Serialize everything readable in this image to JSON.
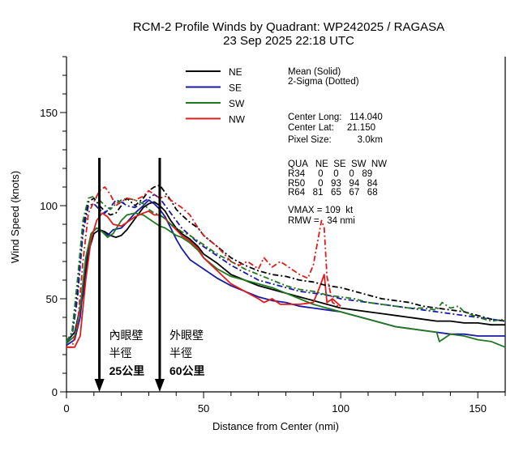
{
  "chart_data": {
    "type": "line",
    "title": "RCM-2 Profile Winds by Quadrant: WP242025 / RAGASA",
    "subtitle": "23 Sep 2025 22:18 UTC",
    "xlabel": "Distance from Center (nmi)",
    "ylabel": "Wind Speed (knots)",
    "xlim": [
      0,
      160
    ],
    "ylim": [
      0,
      180
    ],
    "x_ticks": [
      "0",
      "50",
      "100",
      "150"
    ],
    "y_ticks": [
      "0",
      "50",
      "100",
      "150"
    ],
    "grid": false,
    "legend": {
      "placement": "top-center",
      "entries": [
        {
          "name": "NE",
          "color": "#000000"
        },
        {
          "name": "SE",
          "color": "#1a1aa6"
        },
        {
          "name": "SW",
          "color": "#1f7a1f"
        },
        {
          "name": "NW",
          "color": "#e01b1b"
        }
      ]
    },
    "info": {
      "mean_label": "Mean (Solid)",
      "sigma_label": "2-Sigma (Dotted)",
      "center_long": "Center Long:   114.040",
      "center_lat": "Center Lat:     21.150",
      "pixel_size": "Pixel Size:          3.0km",
      "table_header": "QUA   NE  SE  SW  NW",
      "r34": "R34     0    0    0   89",
      "r50": "R50     0   93   94   84",
      "r64": "R64   81   65   67   68",
      "vmax": "VMAX = 109  kt",
      "rmw": "RMW =   34 nmi"
    },
    "annotations": [
      {
        "x": 12,
        "lines": [
          "內眼壁",
          "半徑",
          "25公里"
        ]
      },
      {
        "x": 34,
        "lines": [
          "外眼壁",
          "半徑",
          "60公里"
        ]
      }
    ],
    "series": [
      {
        "name": "NE",
        "color": "#000000",
        "style": "mean",
        "x": [
          0,
          3,
          6,
          8,
          10,
          12,
          14,
          16,
          18,
          20,
          22,
          25,
          28,
          30,
          32,
          34,
          36,
          38,
          40,
          42,
          45,
          48,
          50,
          55,
          60,
          65,
          70,
          75,
          80,
          85,
          90,
          95,
          100,
          105,
          110,
          115,
          120,
          125,
          130,
          135,
          140,
          145,
          150,
          155,
          160
        ],
        "y": [
          27,
          32,
          52,
          75,
          85,
          87,
          86,
          84,
          83,
          84,
          87,
          93,
          99,
          101,
          102,
          100,
          97,
          92,
          88,
          85,
          82,
          78,
          74,
          69,
          63,
          60,
          57,
          55,
          53,
          51,
          49,
          47,
          45,
          44,
          43,
          42,
          41,
          40,
          39,
          38,
          38,
          37,
          37,
          36,
          36
        ]
      },
      {
        "name": "SE",
        "color": "#1a1aa6",
        "style": "mean",
        "x": [
          0,
          3,
          5,
          7,
          9,
          11,
          13,
          15,
          17,
          20,
          22,
          25,
          28,
          30,
          32,
          34,
          36,
          38,
          40,
          42,
          45,
          48,
          50,
          55,
          60,
          65,
          70,
          75,
          80,
          85,
          90,
          95,
          100,
          105,
          110,
          115,
          120,
          125,
          130,
          135,
          140,
          145,
          150,
          155,
          160
        ],
        "y": [
          25,
          28,
          40,
          70,
          85,
          88,
          86,
          84,
          87,
          88,
          91,
          96,
          100,
          103,
          101,
          98,
          94,
          88,
          82,
          77,
          71,
          68,
          66,
          61,
          57,
          54,
          51,
          49,
          48,
          46,
          45,
          44,
          43,
          41,
          39,
          37,
          35,
          34,
          33,
          32,
          31,
          31,
          30,
          30,
          30
        ]
      },
      {
        "name": "SW",
        "color": "#1f7a1f",
        "style": "mean",
        "x": [
          0,
          3,
          5,
          7,
          9,
          11,
          13,
          15,
          17,
          20,
          22,
          25,
          28,
          30,
          32,
          34,
          36,
          38,
          40,
          42,
          45,
          48,
          50,
          55,
          60,
          65,
          70,
          75,
          80,
          85,
          90,
          95,
          100,
          105,
          110,
          115,
          120,
          125,
          130,
          135,
          136,
          140,
          145,
          150,
          155,
          160
        ],
        "y": [
          26,
          30,
          45,
          72,
          85,
          88,
          86,
          83,
          85,
          92,
          95,
          96,
          95,
          93,
          91,
          89,
          88,
          86,
          84,
          83,
          80,
          76,
          72,
          66,
          62,
          60,
          58,
          56,
          53,
          50,
          47,
          45,
          43,
          41,
          39,
          37,
          35,
          34,
          33,
          32,
          27,
          31,
          30,
          28,
          27,
          24
        ]
      },
      {
        "name": "NW",
        "color": "#e01b1b",
        "style": "mean",
        "x": [
          0,
          3,
          5,
          7,
          9,
          11,
          13,
          15,
          17,
          20,
          22,
          25,
          28,
          30,
          32,
          34,
          36,
          38,
          40,
          42,
          45,
          48,
          50,
          55,
          60,
          65,
          70,
          72,
          75,
          78,
          80,
          85,
          90,
          92,
          94,
          95,
          97,
          100
        ],
        "y": [
          24,
          24,
          30,
          60,
          82,
          92,
          96,
          94,
          90,
          89,
          91,
          94,
          96,
          97,
          95,
          95,
          93,
          90,
          87,
          84,
          81,
          77,
          72,
          65,
          58,
          54,
          50,
          48,
          50,
          47,
          47,
          47,
          48,
          55,
          63,
          48,
          50,
          46
        ]
      },
      {
        "name": "NE",
        "color": "#000000",
        "style": "sigma",
        "x": [
          0,
          2,
          4,
          6,
          8,
          10,
          12,
          14,
          16,
          18,
          20,
          22,
          25,
          28,
          30,
          32,
          34,
          36,
          38,
          40,
          42,
          45,
          48,
          50,
          55,
          60,
          65,
          70,
          75,
          80,
          85,
          90,
          95,
          100,
          105,
          110,
          115,
          120,
          125,
          130,
          135,
          140,
          145,
          150,
          155,
          160
        ],
        "y": [
          27,
          32,
          55,
          88,
          102,
          104,
          100,
          97,
          95,
          96,
          100,
          104,
          100,
          104,
          108,
          110,
          111,
          107,
          103,
          98,
          95,
          91,
          88,
          84,
          78,
          72,
          68,
          65,
          63,
          62,
          60,
          59,
          57,
          56,
          54,
          52,
          50,
          49,
          48,
          46,
          45,
          44,
          43,
          41,
          39,
          38
        ]
      },
      {
        "name": "SE",
        "color": "#1a1aa6",
        "style": "sigma",
        "x": [
          0,
          2,
          4,
          6,
          8,
          10,
          12,
          14,
          16,
          18,
          20,
          22,
          25,
          28,
          30,
          32,
          34,
          36,
          38,
          40,
          42,
          45,
          48,
          50,
          55,
          60,
          65,
          70,
          75,
          80,
          85,
          90,
          95,
          100,
          105,
          110,
          115,
          120,
          125,
          130,
          135,
          140,
          145,
          150,
          155,
          160
        ],
        "y": [
          27,
          30,
          50,
          85,
          100,
          101,
          98,
          96,
          99,
          103,
          102,
          100,
          99,
          102,
          104,
          106,
          104,
          100,
          96,
          92,
          88,
          84,
          80,
          78,
          73,
          68,
          64,
          60,
          58,
          56,
          54,
          53,
          52,
          50,
          49,
          48,
          47,
          46,
          45,
          44,
          43,
          42,
          41,
          40,
          39,
          38
        ]
      },
      {
        "name": "SW",
        "color": "#1f7a1f",
        "style": "sigma",
        "x": [
          0,
          2,
          4,
          6,
          8,
          10,
          12,
          14,
          16,
          18,
          20,
          22,
          25,
          28,
          30,
          32,
          34,
          36,
          38,
          40,
          42,
          45,
          48,
          50,
          55,
          60,
          65,
          70,
          75,
          80,
          85,
          90,
          95,
          100,
          105,
          110,
          115,
          120,
          125,
          130,
          135,
          137,
          140,
          143,
          145,
          150,
          155,
          160
        ],
        "y": [
          27,
          32,
          60,
          92,
          104,
          105,
          103,
          100,
          98,
          101,
          103,
          104,
          103,
          101,
          98,
          96,
          95,
          93,
          90,
          88,
          86,
          84,
          81,
          79,
          74,
          70,
          66,
          63,
          60,
          57,
          55,
          54,
          52,
          51,
          50,
          48,
          47,
          46,
          45,
          45,
          44,
          48,
          45,
          46,
          43,
          40,
          38,
          39
        ]
      },
      {
        "name": "NW",
        "color": "#e01b1b",
        "style": "sigma",
        "x": [
          0,
          2,
          4,
          6,
          8,
          10,
          12,
          14,
          16,
          18,
          20,
          22,
          25,
          28,
          30,
          32,
          34,
          36,
          38,
          40,
          42,
          45,
          48,
          50,
          55,
          60,
          63,
          66,
          70,
          72,
          75,
          78,
          80,
          85,
          88,
          90,
          92,
          93,
          94,
          95,
          96,
          97,
          100
        ],
        "y": [
          24,
          24,
          35,
          70,
          96,
          102,
          108,
          110,
          106,
          100,
          102,
          104,
          103,
          105,
          108,
          106,
          104,
          105,
          103,
          101,
          99,
          95,
          88,
          84,
          78,
          70,
          68,
          70,
          66,
          72,
          67,
          70,
          68,
          63,
          61,
          68,
          84,
          92,
          88,
          62,
          55,
          48,
          45
        ]
      }
    ]
  }
}
